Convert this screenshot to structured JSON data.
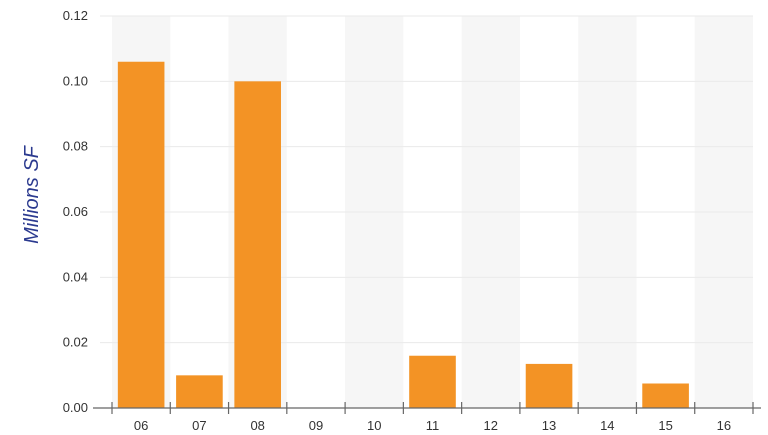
{
  "chart_data": {
    "type": "bar",
    "categories": [
      "06",
      "07",
      "08",
      "09",
      "10",
      "11",
      "12",
      "13",
      "14",
      "15",
      "16"
    ],
    "values": [
      0.106,
      0.01,
      0.1,
      0,
      0,
      0.016,
      0,
      0.0135,
      0,
      0.0075,
      0
    ],
    "title": "",
    "xlabel": "",
    "ylabel": "Millions SF",
    "ylim": [
      0,
      0.12
    ],
    "yticks": [
      "0.00",
      "0.02",
      "0.04",
      "0.06",
      "0.08",
      "0.10",
      "0.12"
    ],
    "grid": true,
    "legend": "none",
    "colors": {
      "bar": "#f39325",
      "band_alt": "#f6f6f6",
      "gridline": "#eaeaea",
      "axis": "#666666",
      "ylabel": "#2b3a8f"
    }
  }
}
